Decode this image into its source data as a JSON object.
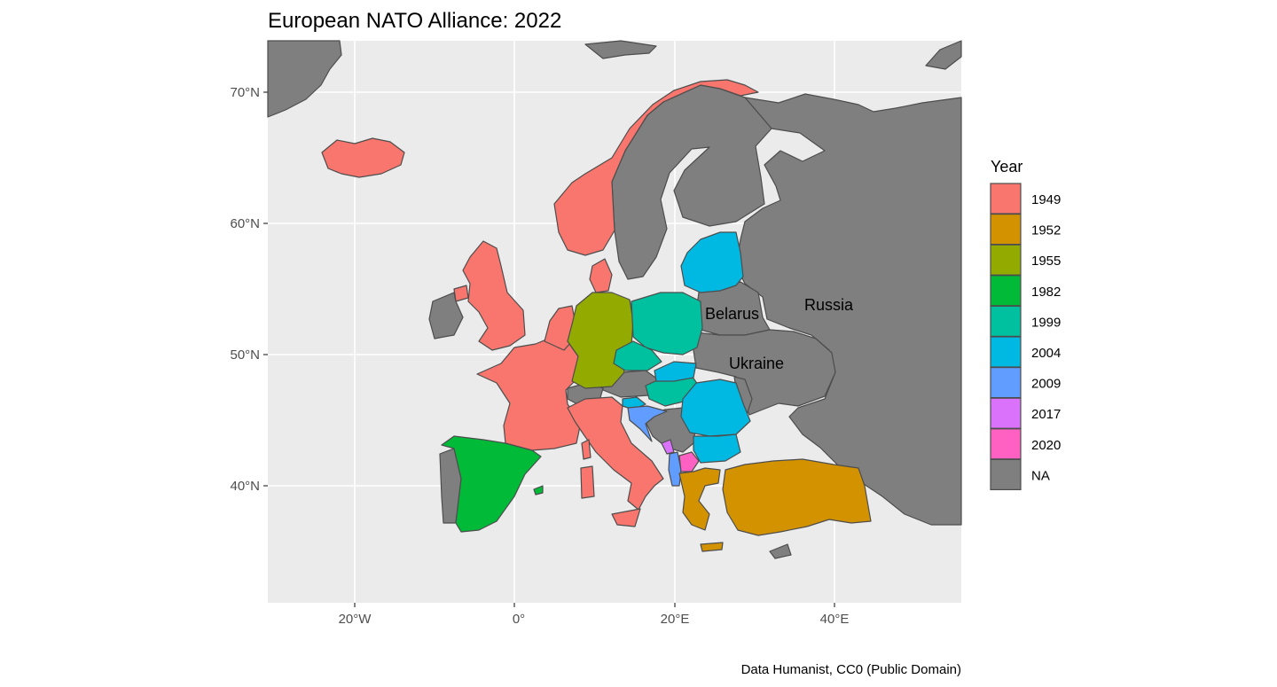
{
  "title": "European NATO Alliance: 2022",
  "caption": "Data Humanist, CC0 (Public Domain)",
  "colors": {
    "panel_background": "#ebebeb",
    "grid": "#ffffff",
    "country_border": "#4d4d4d",
    "y1949": "#F8766D",
    "y1952": "#D39200",
    "y1955": "#93AA00",
    "y1982": "#00BA38",
    "y1999": "#00C19F",
    "y2004": "#00B9E3",
    "y2009": "#619CFF",
    "y2017": "#DB72FB",
    "y2020": "#FF61C3",
    "na": "#7f7f7f"
  },
  "axes": {
    "x_ticks": [
      "20°W",
      "0°",
      "20°E",
      "40°E"
    ],
    "y_ticks": [
      "70°N",
      "60°N",
      "50°N",
      "40°N"
    ]
  },
  "legend": {
    "title": "Year",
    "entries": [
      {
        "label": "1949",
        "color": "#F8766D"
      },
      {
        "label": "1952",
        "color": "#D39200"
      },
      {
        "label": "1955",
        "color": "#93AA00"
      },
      {
        "label": "1982",
        "color": "#00BA38"
      },
      {
        "label": "1999",
        "color": "#00C19F"
      },
      {
        "label": "2004",
        "color": "#00B9E3"
      },
      {
        "label": "2009",
        "color": "#619CFF"
      },
      {
        "label": "2017",
        "color": "#DB72FB"
      },
      {
        "label": "2020",
        "color": "#FF61C3"
      },
      {
        "label": "NA",
        "color": "#7f7f7f"
      }
    ]
  },
  "country_labels": {
    "russia": "Russia",
    "belarus": "Belarus",
    "ukraine": "Ukraine"
  }
}
